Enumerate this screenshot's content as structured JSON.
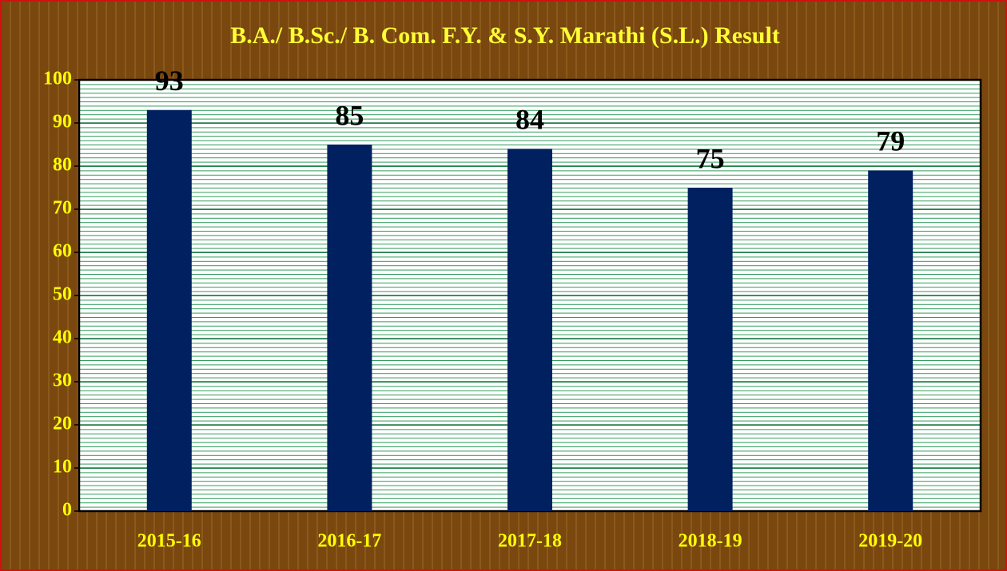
{
  "chart_data": {
    "type": "bar",
    "title": "B.A./ B.Sc./ B. Com. F.Y. & S.Y. Marathi (S.L.) Result",
    "categories": [
      "2015-16",
      "2016-17",
      "2017-18",
      "2018-19",
      "2019-20"
    ],
    "values": [
      93,
      85,
      84,
      75,
      79
    ],
    "color": "#002060",
    "ylim": [
      0,
      100
    ],
    "yticks": [
      0,
      10,
      20,
      30,
      40,
      50,
      60,
      70,
      80,
      90,
      100
    ],
    "grid": true
  }
}
